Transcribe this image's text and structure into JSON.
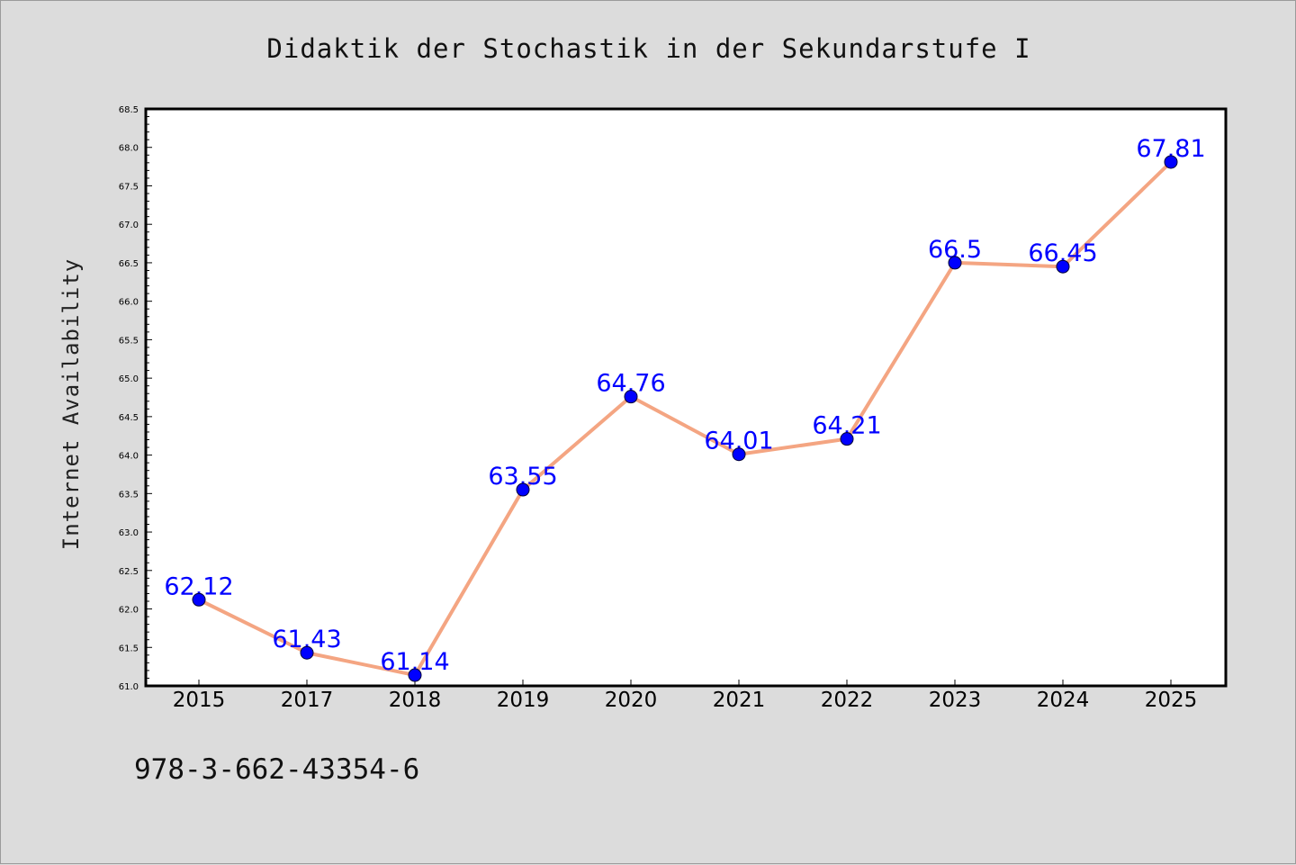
{
  "chart_data": {
    "type": "line",
    "title": "Didaktik der Stochastik in der Sekundarstufe I",
    "xlabel": "",
    "ylabel": "Internet Availability",
    "categories": [
      "2015",
      "2017",
      "2018",
      "2019",
      "2020",
      "2021",
      "2022",
      "2023",
      "2024",
      "2025"
    ],
    "series": [
      {
        "values": [
          62.12,
          61.43,
          61.14,
          63.55,
          64.76,
          64.01,
          64.21,
          66.5,
          66.45,
          67.81
        ],
        "labels": [
          "62.12",
          "61.43",
          "61.14",
          "63.55",
          "64.76",
          "64.01",
          "64.21",
          "66.5",
          "66.45",
          "67.81"
        ]
      }
    ],
    "ylim": [
      61.0,
      68.5
    ],
    "yticks": [
      "61.0",
      "61.5",
      "62.0",
      "62.5",
      "63.0",
      "63.5",
      "64.0",
      "64.5",
      "65.0",
      "65.5",
      "66.0",
      "66.5",
      "67.0",
      "67.5",
      "68.0",
      "68.5"
    ],
    "grid": false,
    "legend": "none",
    "colors": {
      "line": "#f4a582",
      "marker": "#0000ff",
      "labels": "#0000ff",
      "background": "#dcdcdc",
      "plot_background": "#ffffff"
    }
  },
  "footer": {
    "isbn": "978-3-662-43354-6"
  }
}
